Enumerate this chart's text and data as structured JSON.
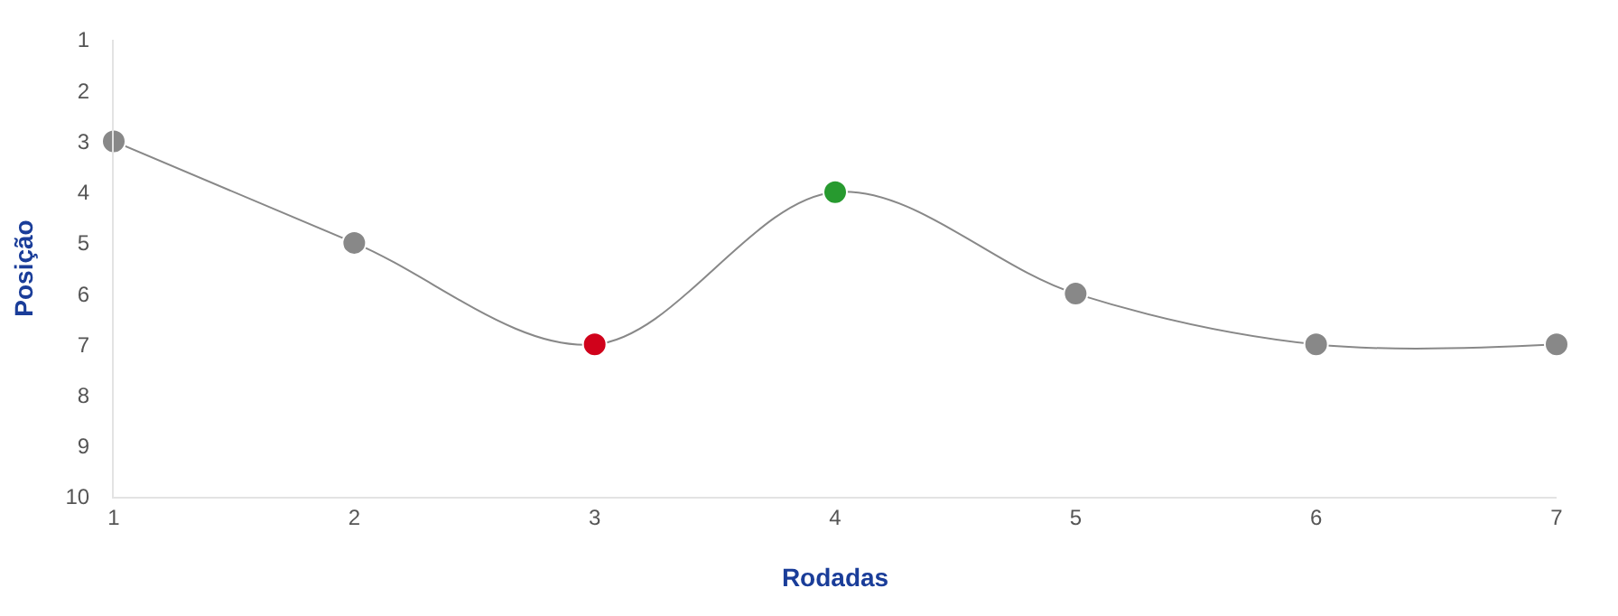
{
  "chart_data": {
    "type": "line",
    "xlabel": "Rodadas",
    "ylabel": "Posição",
    "x": [
      1,
      2,
      3,
      4,
      5,
      6,
      7
    ],
    "series": [
      {
        "color": "#888888",
        "colors": [
          "#888888",
          "#888888",
          "#d0021b",
          "#279a2f",
          "#888888",
          "#888888",
          "#888888"
        ],
        "values": [
          3,
          5,
          7,
          4,
          6,
          7,
          7
        ]
      }
    ],
    "xlim": [
      1,
      7
    ],
    "xticks": [
      1,
      2,
      3,
      4,
      5,
      6,
      7
    ],
    "ylim": [
      10,
      1
    ],
    "yticks": [
      1,
      2,
      3,
      4,
      5,
      6,
      7,
      8,
      9,
      10
    ],
    "marker": "circle",
    "line_style": "solid"
  }
}
